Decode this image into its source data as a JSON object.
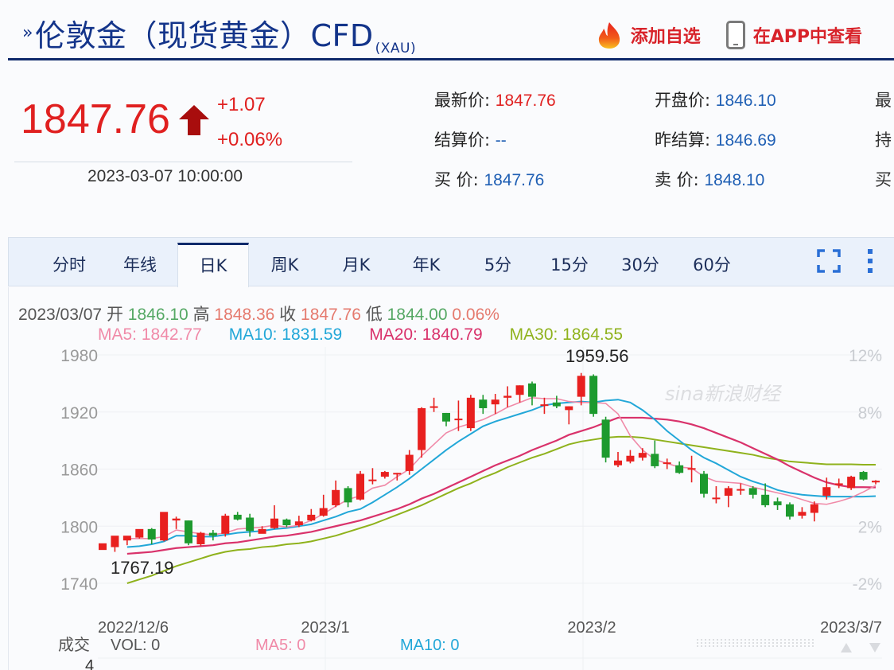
{
  "header": {
    "chevron": "»",
    "title": "伦敦金（现货黄金）CFD",
    "symbol": "(XAU)",
    "add_watchlist_label": "添加自选",
    "open_in_app_label": "在APP中查看",
    "icons": [
      "flame-icon",
      "phone-icon"
    ]
  },
  "quote": {
    "price": "1847.76",
    "direction": "up",
    "change": "+1.07",
    "change_pct": "+0.06%",
    "time": "2023-03-07 10:00:00"
  },
  "stats": {
    "col1": [
      {
        "label": "最新价: ",
        "value": "1847.76",
        "color": "red"
      },
      {
        "label": "结算价: ",
        "value": "--"
      },
      {
        "label": " 买  价: ",
        "value": "1847.76"
      }
    ],
    "col2": [
      {
        "label": "开盘价: ",
        "value": "1846.10"
      },
      {
        "label": "昨结算: ",
        "value": "1846.69"
      },
      {
        "label": " 卖  价: ",
        "value": "1848.10"
      }
    ],
    "col3_partial": [
      "最",
      "持",
      "买"
    ]
  },
  "tabs": [
    {
      "label": "分时"
    },
    {
      "label": "年线"
    },
    {
      "label": "日K",
      "active": true
    },
    {
      "label": "周K"
    },
    {
      "label": "月K"
    },
    {
      "label": "年K"
    },
    {
      "label": "5分"
    },
    {
      "label": "15分"
    },
    {
      "label": "30分"
    },
    {
      "label": "60分"
    }
  ],
  "toolbar_icons": [
    "fullscreen-icon",
    "more-vertical-icon"
  ],
  "ohlc_bar": {
    "date": "2023/03/07",
    "open_label": "开",
    "open": "1846.10",
    "high_label": "高",
    "high": "1848.36",
    "close_label": "收",
    "close": "1847.76",
    "low_label": "低",
    "low": "1844.00",
    "pct": "0.06%"
  },
  "ma_bar": {
    "ma5": "MA5: 1842.77",
    "ma10": "MA10: 1831.59",
    "ma20": "MA20: 1840.79",
    "ma30": "MA30: 1864.55"
  },
  "colors": {
    "up": "#e8201f",
    "down": "#1d9a2e",
    "ma5": "#f08aa8",
    "ma10": "#22a7d8",
    "ma20": "#d9326b",
    "ma30": "#8fb21c",
    "title": "#13348a",
    "accent_red": "#d8232a"
  },
  "volume": {
    "label": "成交",
    "vol": "VOL: 0",
    "ma5": "MA5: 0",
    "ma10": "MA10: 0",
    "axis_partial": "4"
  },
  "watermark": "sina新浪财经",
  "chart_data": {
    "type": "candlestick",
    "title": "伦敦金（现货黄金）CFD 日K",
    "y_ticks": [
      1980,
      1920,
      1860,
      1800,
      1740
    ],
    "y_right_ticks": [
      "12%",
      "8%",
      "",
      "2%",
      "-2%"
    ],
    "ylim": [
      1725,
      1985
    ],
    "x_ticks": [
      "2022/12/6",
      "2023/1",
      "2023/2",
      "2023/3/7"
    ],
    "annotations": {
      "max": "1959.56",
      "min": "1767.19"
    },
    "candles": [
      [
        1775,
        1782,
        1770,
        1770
      ],
      [
        1778,
        1790,
        1773,
        1788
      ],
      [
        1785,
        1790,
        1780,
        1786
      ],
      [
        1788,
        1797,
        1787,
        1791
      ],
      [
        1797,
        1786,
        1781,
        1798
      ],
      [
        1785,
        1815,
        1784,
        1810
      ],
      [
        1806,
        1808,
        1797,
        1810
      ],
      [
        1806,
        1782,
        1780,
        1806
      ],
      [
        1781,
        1793,
        1779,
        1794
      ],
      [
        1793,
        1790,
        1785,
        1796
      ],
      [
        1792,
        1811,
        1789,
        1813
      ],
      [
        1812,
        1807,
        1806,
        1815
      ],
      [
        1809,
        1795,
        1789,
        1813
      ],
      [
        1792,
        1797,
        1793,
        1800
      ],
      [
        1798,
        1808,
        1797,
        1822
      ],
      [
        1807,
        1801,
        1799,
        1808
      ],
      [
        1801,
        1805,
        1799,
        1811
      ],
      [
        1806,
        1812,
        1805,
        1818
      ],
      [
        1811,
        1819,
        1810,
        1833
      ],
      [
        1822,
        1838,
        1820,
        1848
      ],
      [
        1840,
        1825,
        1820,
        1842
      ],
      [
        1828,
        1855,
        1827,
        1858
      ],
      [
        1849,
        1849,
        1844,
        1861
      ],
      [
        1852,
        1857,
        1850,
        1858
      ],
      [
        1856,
        1856,
        1848,
        1856
      ],
      [
        1858,
        1875,
        1854,
        1880
      ],
      [
        1880,
        1924,
        1872,
        1925
      ],
      [
        1926,
        1926,
        1920,
        1935
      ],
      [
        1919,
        1910,
        1905,
        1919
      ],
      [
        1912,
        1913,
        1900,
        1932
      ],
      [
        1903,
        1935,
        1900,
        1938
      ],
      [
        1933,
        1924,
        1918,
        1938
      ],
      [
        1928,
        1933,
        1918,
        1939
      ],
      [
        1935,
        1937,
        1925,
        1947
      ],
      [
        1938,
        1948,
        1930,
        1948
      ],
      [
        1950,
        1936,
        1927,
        1952
      ],
      [
        1928,
        1928,
        1918,
        1935
      ],
      [
        1930,
        1926,
        1924,
        1937
      ],
      [
        1922,
        1926,
        1907,
        1926
      ],
      [
        1936,
        1958,
        1927,
        1961
      ],
      [
        1958,
        1918,
        1915,
        1959.56
      ],
      [
        1912,
        1872,
        1867,
        1915
      ],
      [
        1864,
        1869,
        1862,
        1878
      ],
      [
        1868,
        1874,
        1866,
        1880
      ],
      [
        1872,
        1877,
        1869,
        1882
      ],
      [
        1876,
        1863,
        1861,
        1890
      ],
      [
        1867,
        1867,
        1860,
        1871
      ],
      [
        1864,
        1856,
        1855,
        1868
      ],
      [
        1861,
        1861,
        1846,
        1874
      ],
      [
        1855,
        1834,
        1830,
        1858
      ],
      [
        1830,
        1830,
        1824,
        1842
      ],
      [
        1832,
        1840,
        1820,
        1842
      ],
      [
        1839,
        1839,
        1833,
        1845
      ],
      [
        1840,
        1833,
        1829,
        1842
      ],
      [
        1833,
        1822,
        1820,
        1845
      ],
      [
        1826,
        1822,
        1817,
        1830
      ],
      [
        1823,
        1810,
        1807,
        1825
      ],
      [
        1811,
        1815,
        1808,
        1820
      ],
      [
        1814,
        1823,
        1805,
        1826
      ],
      [
        1832,
        1841,
        1828,
        1851
      ],
      [
        1844,
        1845,
        1840,
        1850
      ],
      [
        1840,
        1852,
        1838,
        1853
      ],
      [
        1857,
        1849,
        1848,
        1858
      ],
      [
        1846,
        1847.76,
        1844,
        1848.36
      ]
    ],
    "ma5": [
      1787,
      1787,
      1787,
      1789,
      1796,
      1794,
      1792,
      1791,
      1793,
      1797,
      1798,
      1799,
      1801,
      1799,
      1801,
      1806,
      1813,
      1821,
      1828,
      1832,
      1840,
      1843,
      1852,
      1860,
      1874,
      1886,
      1898,
      1904,
      1908,
      1912,
      1918,
      1925,
      1930,
      1935,
      1934,
      1934,
      1931,
      1930,
      1930,
      1929,
      1918,
      1895,
      1880,
      1870,
      1866,
      1862,
      1861,
      1852,
      1847,
      1846,
      1845,
      1841,
      1838,
      1835,
      1832,
      1828,
      1824,
      1823,
      1826,
      1830,
      1836,
      1842.77
    ],
    "ma10": [
      1778,
      1779,
      1781,
      1784,
      1790,
      1790,
      1789,
      1789,
      1791,
      1793,
      1794,
      1795,
      1797,
      1798,
      1800,
      1802,
      1806,
      1810,
      1815,
      1818,
      1825,
      1833,
      1841,
      1850,
      1860,
      1870,
      1880,
      1889,
      1897,
      1905,
      1910,
      1914,
      1918,
      1922,
      1927,
      1929,
      1930,
      1931,
      1930,
      1932,
      1933,
      1930,
      1922,
      1912,
      1900,
      1890,
      1880,
      1872,
      1866,
      1859,
      1852,
      1847,
      1843,
      1838,
      1835,
      1833,
      1832,
      1831,
      1831,
      1831,
      1831,
      1831.59
    ],
    "ma20": [
      1771,
      1772,
      1773,
      1775,
      1777,
      1778,
      1779,
      1780,
      1782,
      1783,
      1785,
      1787,
      1789,
      1790,
      1792,
      1794,
      1797,
      1800,
      1803,
      1806,
      1810,
      1814,
      1818,
      1823,
      1829,
      1834,
      1840,
      1846,
      1852,
      1858,
      1864,
      1869,
      1874,
      1880,
      1885,
      1890,
      1896,
      1900,
      1904,
      1909,
      1914,
      1914,
      1914,
      1913,
      1912,
      1910,
      1907,
      1903,
      1898,
      1893,
      1888,
      1882,
      1876,
      1870,
      1863,
      1857,
      1851,
      1846,
      1843,
      1841,
      1841,
      1840.79
    ],
    "ma30": [
      1740,
      1744,
      1748,
      1753,
      1758,
      1762,
      1766,
      1770,
      1773,
      1775,
      1776,
      1778,
      1779,
      1781,
      1782,
      1784,
      1787,
      1790,
      1794,
      1798,
      1802,
      1807,
      1812,
      1817,
      1822,
      1828,
      1834,
      1840,
      1845,
      1851,
      1856,
      1862,
      1867,
      1872,
      1876,
      1881,
      1886,
      1889,
      1891,
      1893,
      1894,
      1894,
      1893,
      1891,
      1889,
      1887,
      1885,
      1883,
      1881,
      1879,
      1877,
      1875,
      1872,
      1870,
      1868,
      1867,
      1866,
      1865,
      1865,
      1865,
      1864.6,
      1864.55
    ]
  }
}
